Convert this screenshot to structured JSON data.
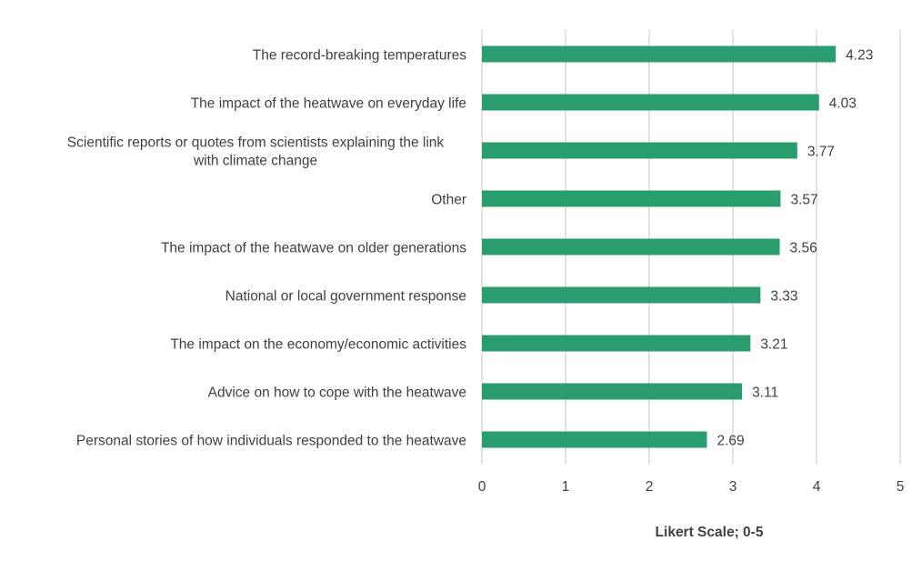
{
  "chart_data": {
    "type": "bar",
    "orientation": "horizontal",
    "categories": [
      "The record-breaking temperatures",
      "The impact of the heatwave on everyday life",
      "Scientific reports or quotes from scientists explaining the link with climate change",
      "Other",
      "The impact of the heatwave on older generations",
      "National or local government response",
      "The impact on the economy/economic activities",
      "Advice on how to cope with the heatwave",
      "Personal stories of how individuals responded to the heatwave"
    ],
    "category_label_lines": [
      [
        "The record-breaking temperatures"
      ],
      [
        "The impact of the heatwave on everyday life"
      ],
      [
        "Scientific reports or quotes from scientists explaining the link",
        "with climate change"
      ],
      [
        "Other"
      ],
      [
        "The impact of the heatwave on older generations"
      ],
      [
        "National or local government response"
      ],
      [
        "The impact on the economy/economic activities"
      ],
      [
        "Advice on how to cope with the heatwave"
      ],
      [
        "Personal stories of how individuals responded to the heatwave"
      ]
    ],
    "values": [
      4.23,
      4.03,
      3.77,
      3.57,
      3.56,
      3.33,
      3.21,
      3.11,
      2.69
    ],
    "value_labels": [
      "4.23",
      "4.03",
      "3.77",
      "3.57",
      "3.56",
      "3.33",
      "3.21",
      "3.11",
      "2.69"
    ],
    "xlim": [
      0,
      5
    ],
    "xticks": [
      0,
      1,
      2,
      3,
      4,
      5
    ],
    "xtick_labels": [
      "0",
      "1",
      "2",
      "3",
      "4",
      "5"
    ],
    "xlabel": "Likert Scale; 0-5",
    "ylabel": "",
    "title": "",
    "grid": "vertical",
    "legend": "none",
    "bar_color": "#2a9d6f"
  }
}
